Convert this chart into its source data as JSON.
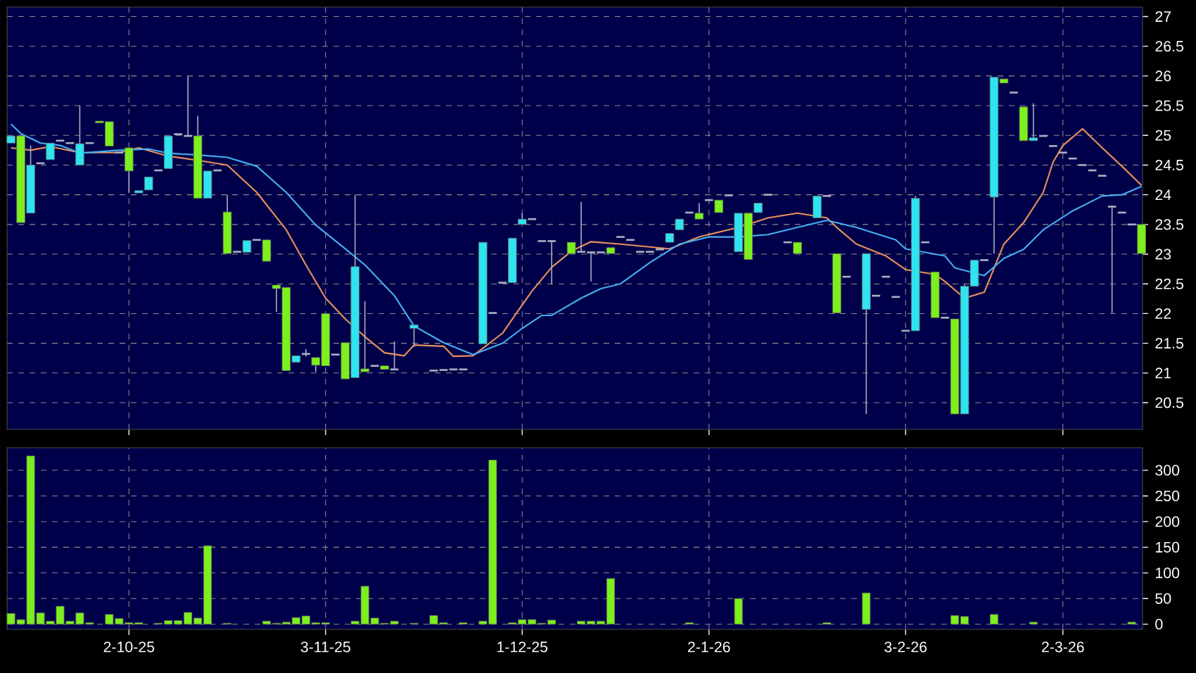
{
  "chart_data": [
    {
      "type": "candlestick",
      "tick_labels": "y",
      "grid": true,
      "ylim": [
        20.05,
        27.16
      ],
      "yticks": [
        20.5,
        21,
        21.5,
        22,
        22.5,
        23,
        23.5,
        24,
        24.5,
        25,
        25.5,
        26,
        26.5,
        27
      ],
      "categories": [
        null,
        null,
        null,
        null,
        null,
        null,
        null,
        null,
        null,
        null,
        null,
        null,
        null,
        null,
        null,
        null,
        null,
        null,
        null,
        null,
        null,
        null,
        null,
        null,
        null,
        null,
        null,
        null,
        null,
        null,
        null,
        null,
        null,
        null,
        null,
        null,
        null,
        null,
        null,
        null,
        null,
        null,
        null,
        null,
        null,
        null,
        null,
        null,
        null,
        null,
        null,
        null,
        null,
        null,
        null,
        null,
        null,
        null,
        null,
        null,
        null,
        null,
        null,
        null,
        null,
        null,
        null,
        null,
        null,
        null,
        null,
        null,
        null,
        null,
        null,
        null,
        null,
        null,
        null,
        null,
        null,
        null,
        null,
        null,
        null,
        null,
        null,
        null,
        null,
        null,
        null,
        null,
        null,
        null,
        null,
        null,
        null,
        null,
        null,
        null,
        null,
        null,
        null,
        null,
        null,
        null,
        null,
        null,
        null,
        null,
        null,
        null,
        null,
        null,
        null,
        null
      ],
      "ohlc": [
        [
          24.87,
          24.99,
          24.87,
          24.99
        ],
        [
          24.99,
          24.99,
          23.53,
          23.53
        ],
        [
          23.69,
          24.83,
          23.69,
          24.5
        ],
        [
          24.53,
          24.53,
          24.53,
          24.53
        ],
        [
          24.59,
          24.87,
          24.59,
          24.87
        ],
        [
          24.91,
          24.91,
          24.91,
          24.91
        ],
        [
          24.87,
          24.87,
          24.87,
          24.87
        ],
        [
          24.5,
          25.5,
          24.5,
          24.86
        ],
        [
          24.87,
          24.87,
          24.87,
          24.87
        ],
        [
          25.24,
          25.24,
          25.21,
          25.21
        ],
        [
          25.23,
          25.23,
          24.82,
          24.82
        ],
        [
          24.71,
          24.71,
          24.71,
          24.71
        ],
        [
          24.79,
          24.79,
          24.03,
          24.4
        ],
        [
          24.03,
          24.07,
          24.03,
          24.07
        ],
        [
          24.08,
          24.3,
          24.08,
          24.3
        ],
        [
          24.41,
          24.41,
          24.41,
          24.41
        ],
        [
          24.44,
          24.99,
          24.44,
          24.99
        ],
        [
          25.02,
          25.02,
          25.02,
          25.02
        ],
        [
          24.99,
          26.0,
          24.99,
          24.99
        ],
        [
          24.99,
          25.33,
          23.94,
          23.94
        ],
        [
          23.94,
          24.4,
          23.94,
          24.4
        ],
        [
          24.41,
          24.41,
          24.41,
          24.41
        ],
        [
          23.71,
          24.0,
          23.01,
          23.01
        ],
        [
          23.04,
          23.04,
          23.04,
          23.04
        ],
        [
          23.03,
          23.23,
          23.03,
          23.23
        ],
        [
          23.24,
          23.24,
          23.24,
          23.24
        ],
        [
          23.24,
          23.24,
          22.88,
          22.88
        ],
        [
          22.48,
          22.48,
          22.03,
          22.42
        ],
        [
          22.44,
          22.44,
          21.04,
          21.04
        ],
        [
          21.18,
          21.29,
          21.18,
          21.29
        ],
        [
          21.32,
          21.4,
          21.28,
          21.32
        ],
        [
          21.26,
          21.26,
          21.02,
          21.13
        ],
        [
          22.0,
          22.0,
          21.12,
          21.12
        ],
        [
          21.31,
          21.31,
          21.31,
          21.31
        ],
        [
          21.51,
          21.51,
          20.9,
          20.9
        ],
        [
          20.92,
          24.0,
          20.92,
          22.79
        ],
        [
          21.07,
          22.21,
          21.02,
          21.02
        ],
        [
          21.12,
          21.12,
          21.12,
          21.12
        ],
        [
          21.12,
          21.12,
          21.06,
          21.06
        ],
        [
          21.06,
          21.53,
          21.06,
          21.06
        ],
        null,
        [
          21.75,
          21.81,
          21.44,
          21.81
        ],
        null,
        [
          21.04,
          21.04,
          21.04,
          21.04
        ],
        [
          21.05,
          21.05,
          21.05,
          21.05
        ],
        [
          21.06,
          21.06,
          21.06,
          21.06
        ],
        [
          21.06,
          21.06,
          21.06,
          21.06
        ],
        null,
        [
          21.49,
          23.2,
          21.49,
          23.2
        ],
        [
          22.01,
          22.01,
          22.01,
          22.01
        ],
        [
          22.52,
          22.52,
          22.52,
          22.52
        ],
        [
          22.52,
          23.27,
          22.52,
          23.27
        ],
        [
          23.5,
          23.69,
          23.5,
          23.59
        ],
        [
          23.59,
          23.59,
          23.59,
          23.59
        ],
        [
          23.22,
          23.22,
          23.22,
          23.22
        ],
        [
          23.22,
          23.22,
          22.49,
          23.22
        ],
        null,
        [
          23.2,
          23.2,
          23.01,
          23.01
        ],
        [
          23.04,
          23.88,
          23.04,
          23.04
        ],
        [
          23.03,
          23.03,
          22.54,
          23.03
        ],
        [
          23.03,
          23.03,
          23.03,
          23.03
        ],
        [
          23.11,
          23.11,
          23.01,
          23.01
        ],
        [
          23.29,
          23.29,
          23.29,
          23.29
        ],
        [
          23.24,
          23.24,
          23.24,
          23.24
        ],
        [
          23.04,
          23.04,
          23.04,
          23.04
        ],
        [
          23.04,
          23.04,
          23.04,
          23.04
        ],
        [
          23.08,
          23.08,
          23.08,
          23.08
        ],
        [
          23.2,
          23.35,
          23.2,
          23.35
        ],
        [
          23.41,
          23.59,
          23.41,
          23.59
        ],
        [
          23.7,
          23.7,
          23.7,
          23.7
        ],
        [
          23.69,
          23.86,
          23.59,
          23.59
        ],
        [
          23.91,
          23.91,
          23.91,
          23.91
        ],
        [
          23.91,
          23.91,
          23.7,
          23.7
        ],
        [
          23.99,
          23.99,
          23.99,
          23.99
        ],
        [
          23.04,
          23.69,
          23.04,
          23.69
        ],
        [
          23.69,
          23.69,
          22.91,
          22.91
        ],
        [
          23.7,
          23.86,
          23.7,
          23.86
        ],
        [
          24.0,
          24.0,
          24.0,
          24.0
        ],
        null,
        [
          23.2,
          23.2,
          23.2,
          23.2
        ],
        [
          23.2,
          23.2,
          23.01,
          23.01
        ],
        null,
        [
          23.61,
          23.98,
          23.61,
          23.98
        ],
        [
          23.98,
          23.98,
          23.98,
          23.98
        ],
        [
          23.01,
          23.01,
          22.01,
          22.01
        ],
        [
          22.62,
          22.62,
          22.62,
          22.62
        ],
        null,
        [
          22.07,
          23.01,
          20.31,
          23.01
        ],
        [
          22.3,
          22.3,
          22.3,
          22.3
        ],
        [
          22.62,
          22.62,
          22.62,
          22.62
        ],
        [
          22.28,
          22.28,
          22.28,
          22.28
        ],
        [
          21.71,
          21.71,
          21.71,
          21.71
        ],
        [
          21.71,
          23.98,
          21.71,
          23.94
        ],
        [
          23.2,
          23.2,
          23.2,
          23.2
        ],
        [
          22.7,
          22.7,
          21.93,
          21.93
        ],
        [
          21.93,
          21.93,
          21.93,
          21.93
        ],
        [
          21.91,
          21.91,
          20.31,
          20.31
        ],
        [
          20.31,
          22.5,
          20.31,
          22.46
        ],
        [
          22.46,
          22.9,
          22.46,
          22.9
        ],
        [
          22.9,
          22.9,
          22.9,
          22.9
        ],
        [
          23.96,
          25.98,
          23.01,
          25.98
        ],
        [
          25.95,
          25.95,
          25.88,
          25.88
        ],
        [
          25.72,
          25.72,
          25.72,
          25.72
        ],
        [
          25.48,
          25.48,
          24.91,
          24.91
        ],
        [
          24.91,
          25.54,
          24.91,
          24.96
        ],
        [
          24.99,
          24.99,
          24.99,
          24.99
        ],
        [
          24.82,
          24.82,
          24.82,
          24.82
        ],
        [
          24.71,
          24.71,
          24.71,
          24.71
        ],
        [
          24.61,
          24.61,
          24.61,
          24.61
        ],
        [
          24.5,
          24.5,
          24.5,
          24.5
        ],
        [
          24.41,
          24.41,
          24.41,
          24.41
        ],
        [
          24.32,
          24.32,
          24.32,
          24.32
        ],
        [
          23.8,
          23.8,
          22.01,
          23.8
        ],
        [
          23.7,
          23.7,
          23.7,
          23.7
        ],
        [
          23.5,
          23.5,
          23.5,
          23.5
        ],
        [
          23.5,
          23.5,
          23.01,
          23.01
        ]
      ],
      "series": [
        {
          "type": "line",
          "color": "#e8915a",
          "values": [
            24.79,
            null,
            24.75,
            null,
            24.81,
            null,
            null,
            24.71,
            null,
            null,
            null,
            24.71,
            null,
            24.79,
            null,
            null,
            24.65,
            null,
            null,
            24.58,
            null,
            null,
            24.5,
            null,
            null,
            24.04,
            null,
            null,
            23.41,
            null,
            22.82,
            null,
            22.26,
            null,
            21.91,
            null,
            21.61,
            null,
            21.34,
            null,
            21.29,
            21.47,
            null,
            null,
            21.45,
            21.28,
            null,
            21.29,
            null,
            null,
            21.67,
            21.91,
            null,
            22.38,
            null,
            22.78,
            null,
            23.05,
            null,
            23.21,
            null,
            null,
            23.17,
            null,
            null,
            null,
            null,
            23.09,
            null,
            null,
            23.29,
            null,
            null,
            null,
            23.45,
            null,
            null,
            23.61,
            null,
            null,
            23.69,
            null,
            null,
            23.61,
            23.45,
            null,
            23.17,
            null,
            null,
            22.97,
            null,
            22.74,
            null,
            null,
            22.66,
            22.54,
            null,
            22.26,
            null,
            22.36,
            null,
            23.17,
            null,
            23.53,
            null,
            24.04,
            24.55,
            24.83,
            null,
            25.11,
            null,
            24.79,
            null,
            24.48,
            null,
            24.16
          ]
        },
        {
          "type": "line",
          "color": "#45aef2",
          "values": [
            25.19,
            25.03,
            null,
            24.87,
            null,
            24.83,
            null,
            24.7,
            null,
            null,
            null,
            24.75,
            null,
            null,
            24.77,
            null,
            24.7,
            null,
            null,
            24.67,
            null,
            null,
            24.63,
            null,
            null,
            24.48,
            null,
            null,
            24.04,
            null,
            null,
            23.49,
            null,
            null,
            23.09,
            null,
            22.82,
            null,
            null,
            22.3,
            null,
            21.79,
            null,
            null,
            21.51,
            null,
            null,
            21.31,
            null,
            null,
            21.5,
            null,
            21.75,
            null,
            21.97,
            21.97,
            null,
            null,
            22.26,
            null,
            22.42,
            null,
            22.5,
            null,
            null,
            22.86,
            null,
            null,
            23.17,
            null,
            null,
            23.29,
            null,
            null,
            23.29,
            null,
            null,
            23.33,
            null,
            null,
            23.45,
            null,
            null,
            23.57,
            null,
            null,
            23.45,
            null,
            null,
            null,
            23.24,
            23.09,
            null,
            null,
            null,
            22.97,
            22.77,
            null,
            null,
            22.64,
            null,
            22.93,
            null,
            23.08,
            null,
            23.41,
            null,
            null,
            23.73,
            null,
            null,
            23.98,
            null,
            24.0,
            null,
            24.14
          ]
        }
      ]
    },
    {
      "type": "bar",
      "grid": true,
      "color": "#7cf01c",
      "ylim": [
        -10,
        344
      ],
      "yticks": [
        0,
        50,
        100,
        150,
        200,
        250,
        300
      ],
      "categories": [
        null,
        null,
        null,
        null,
        null,
        null,
        null,
        null,
        null,
        null,
        null,
        null,
        "2-10-25",
        null,
        null,
        null,
        null,
        null,
        null,
        null,
        null,
        null,
        null,
        null,
        null,
        null,
        null,
        null,
        null,
        null,
        null,
        null,
        "3-11-25",
        null,
        null,
        null,
        null,
        null,
        null,
        null,
        null,
        null,
        null,
        null,
        null,
        null,
        null,
        null,
        null,
        null,
        null,
        null,
        "1-12-25",
        null,
        null,
        null,
        null,
        null,
        null,
        null,
        null,
        null,
        null,
        null,
        null,
        null,
        null,
        null,
        null,
        null,
        null,
        "2-1-26",
        null,
        null,
        null,
        null,
        null,
        null,
        null,
        null,
        null,
        null,
        null,
        null,
        null,
        null,
        null,
        null,
        null,
        null,
        null,
        "3-2-26",
        null,
        null,
        null,
        null,
        null,
        null,
        null,
        null,
        null,
        null,
        null,
        null,
        null,
        null,
        null,
        "2-3-26",
        null,
        null,
        null,
        null,
        null,
        null,
        null,
        null
      ],
      "values": [
        21,
        9,
        328,
        22,
        6,
        35,
        6,
        22,
        3,
        null,
        19,
        11,
        3,
        3,
        null,
        2,
        7,
        7,
        23,
        12,
        153,
        null,
        2,
        null,
        null,
        null,
        6,
        2,
        4,
        13,
        16,
        3,
        3,
        null,
        null,
        6,
        74,
        12,
        2,
        6,
        null,
        2,
        null,
        17,
        3,
        null,
        3,
        null,
        6,
        320,
        null,
        3,
        9,
        9,
        2,
        8,
        null,
        null,
        6,
        6,
        6,
        89,
        null,
        null,
        null,
        null,
        null,
        null,
        null,
        3,
        null,
        null,
        null,
        null,
        50,
        null,
        null,
        null,
        null,
        null,
        null,
        null,
        null,
        3,
        null,
        null,
        null,
        61,
        null,
        null,
        null,
        null,
        null,
        null,
        null,
        null,
        17,
        15,
        null,
        null,
        19,
        null,
        null,
        null,
        4,
        null,
        null,
        null,
        null,
        null,
        null,
        null,
        null,
        null,
        4,
        null
      ]
    }
  ]
}
